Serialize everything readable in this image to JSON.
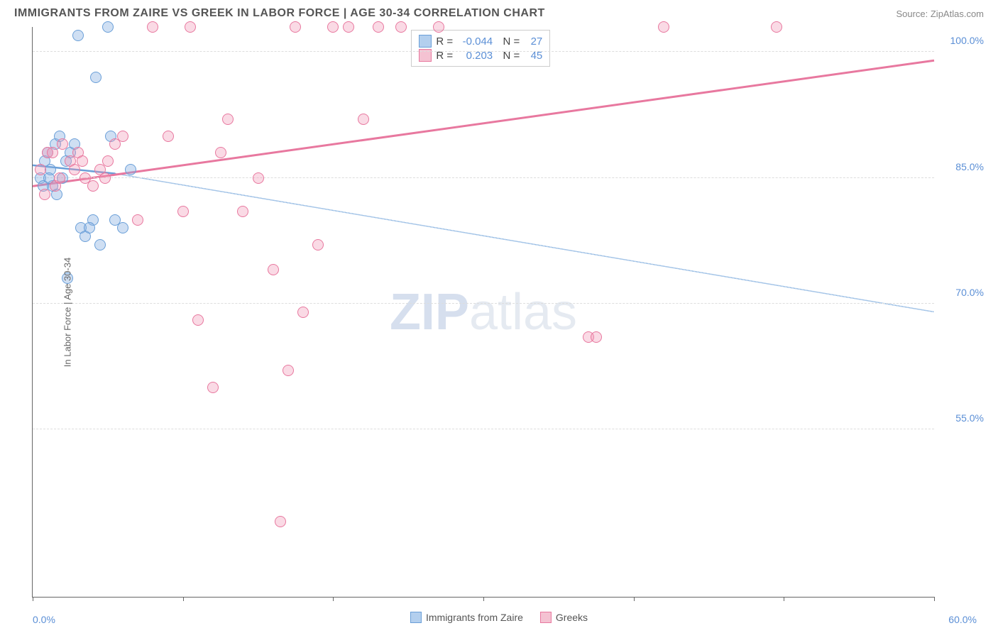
{
  "title": "IMMIGRANTS FROM ZAIRE VS GREEK IN LABOR FORCE | AGE 30-34 CORRELATION CHART",
  "source": "Source: ZipAtlas.com",
  "watermark": {
    "zip": "ZIP",
    "atlas": "atlas"
  },
  "chart": {
    "type": "scatter",
    "background_color": "#ffffff",
    "grid_color": "#dddddd",
    "axis_color": "#666666",
    "label_color": "#5b8fd6",
    "ylabel": "In Labor Force | Age 30-34",
    "xlim": [
      0,
      60
    ],
    "ylim": [
      35,
      103
    ],
    "xtick_positions": [
      0,
      10,
      20,
      30,
      40,
      50,
      60
    ],
    "xtick_min_label": "0.0%",
    "xtick_max_label": "60.0%",
    "ytick_positions": [
      55,
      70,
      85,
      100
    ],
    "ytick_labels": [
      "55.0%",
      "70.0%",
      "85.0%",
      "100.0%"
    ],
    "marker_size": 16,
    "series": [
      {
        "name": "Immigrants from Zaire",
        "color_fill": "rgba(135,175,225,0.4)",
        "color_stroke": "#6a9fd8",
        "swatch_fill": "#b3cfee",
        "swatch_stroke": "#6a9fd8",
        "r": "-0.044",
        "n": "27",
        "trend": {
          "x1": 0,
          "y1": 86.5,
          "x2": 5.5,
          "y2": 85.5,
          "extrap_x2": 60,
          "extrap_y2": 69,
          "stroke_width": 2,
          "dash": "5,4"
        },
        "points": [
          [
            0.8,
            87
          ],
          [
            1.0,
            88
          ],
          [
            1.2,
            86
          ],
          [
            1.5,
            89
          ],
          [
            1.8,
            90
          ],
          [
            2.0,
            85
          ],
          [
            2.2,
            87
          ],
          [
            2.5,
            88
          ],
          [
            2.8,
            89
          ],
          [
            3.0,
            102
          ],
          [
            3.2,
            79
          ],
          [
            3.5,
            78
          ],
          [
            4.0,
            80
          ],
          [
            4.5,
            77
          ],
          [
            5.0,
            103
          ],
          [
            5.2,
            90
          ],
          [
            5.5,
            80
          ],
          [
            6.0,
            79
          ],
          [
            6.5,
            86
          ],
          [
            1.3,
            84
          ],
          [
            1.6,
            83
          ],
          [
            2.3,
            73
          ],
          [
            4.2,
            97
          ],
          [
            0.5,
            85
          ],
          [
            0.7,
            84
          ],
          [
            1.1,
            85
          ],
          [
            3.8,
            79
          ]
        ]
      },
      {
        "name": "Greeks",
        "color_fill": "rgba(240,150,180,0.35)",
        "color_stroke": "#e8789f",
        "swatch_fill": "#f4c2d2",
        "swatch_stroke": "#e8789f",
        "r": "0.203",
        "n": "45",
        "trend": {
          "x1": 0,
          "y1": 84,
          "x2": 60,
          "y2": 99,
          "stroke_width": 3,
          "dash": "none"
        },
        "points": [
          [
            0.5,
            86
          ],
          [
            1.0,
            88
          ],
          [
            1.5,
            84
          ],
          [
            2.0,
            89
          ],
          [
            2.5,
            87
          ],
          [
            3.0,
            88
          ],
          [
            3.5,
            85
          ],
          [
            4.0,
            84
          ],
          [
            4.5,
            86
          ],
          [
            5.0,
            87
          ],
          [
            5.5,
            89
          ],
          [
            6.0,
            90
          ],
          [
            7.0,
            80
          ],
          [
            8.0,
            103
          ],
          [
            9.0,
            90
          ],
          [
            10.0,
            81
          ],
          [
            10.5,
            103
          ],
          [
            11.0,
            68
          ],
          [
            12.0,
            60
          ],
          [
            12.5,
            88
          ],
          [
            13.0,
            92
          ],
          [
            14.0,
            81
          ],
          [
            15.0,
            85
          ],
          [
            16.0,
            74
          ],
          [
            16.5,
            44
          ],
          [
            17.0,
            62
          ],
          [
            17.5,
            103
          ],
          [
            18.0,
            69
          ],
          [
            19.0,
            77
          ],
          [
            20.0,
            103
          ],
          [
            21.0,
            103
          ],
          [
            22.0,
            92
          ],
          [
            23.0,
            103
          ],
          [
            24.5,
            103
          ],
          [
            27.0,
            103
          ],
          [
            37.0,
            66
          ],
          [
            37.5,
            66
          ],
          [
            42.0,
            103
          ],
          [
            49.5,
            103
          ],
          [
            1.8,
            85
          ],
          [
            2.8,
            86
          ],
          [
            3.3,
            87
          ],
          [
            0.8,
            83
          ],
          [
            1.3,
            88
          ],
          [
            4.8,
            85
          ]
        ]
      }
    ]
  },
  "legend_bottom": [
    {
      "label": "Immigrants from Zaire",
      "fill": "#b3cfee",
      "stroke": "#6a9fd8"
    },
    {
      "label": "Greeks",
      "fill": "#f4c2d2",
      "stroke": "#e8789f"
    }
  ]
}
